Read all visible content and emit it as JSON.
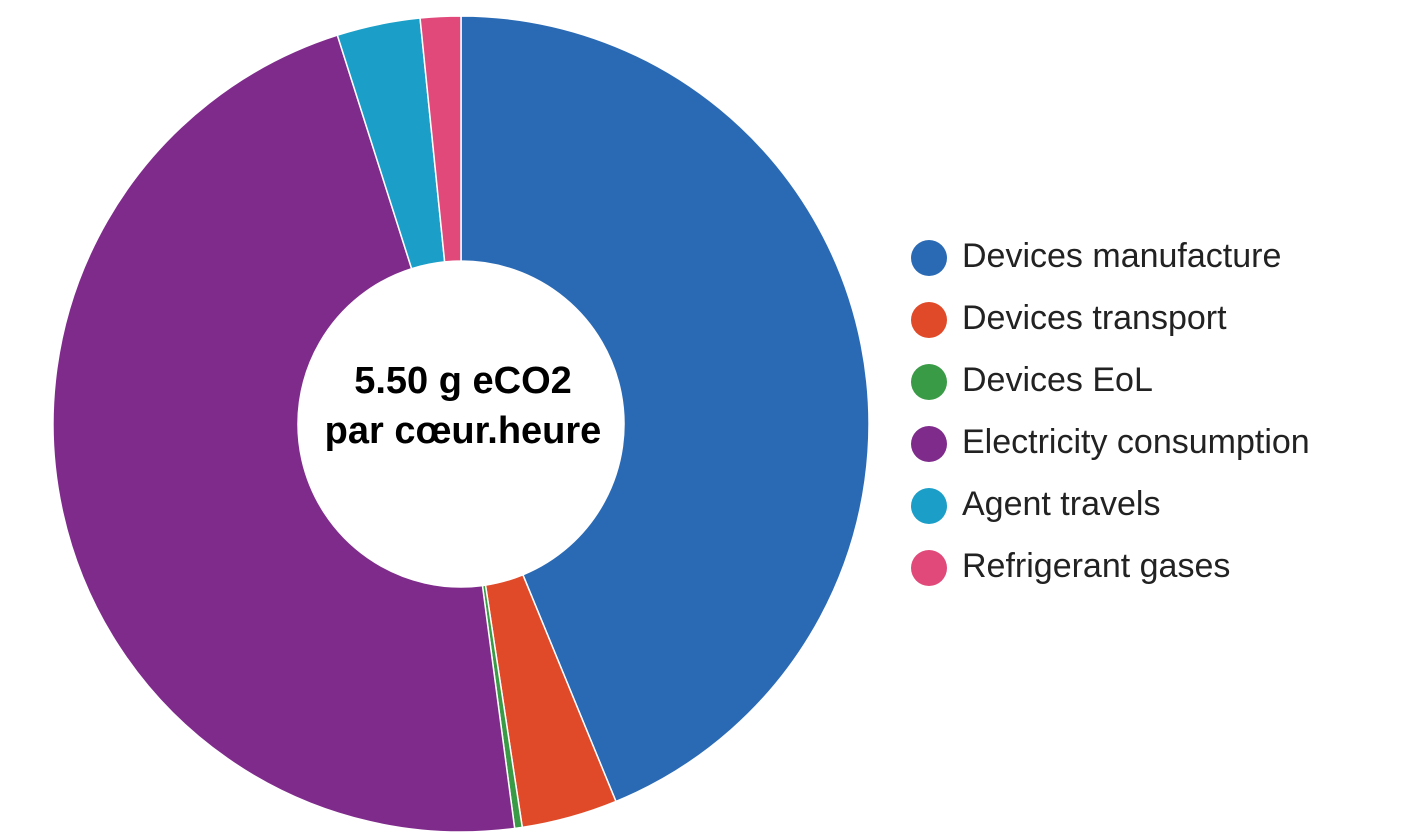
{
  "chart_data": {
    "type": "pie",
    "center_label": [
      "5.50 g eCO2",
      "par cœur.heure"
    ],
    "categories": [
      "Devices manufacture",
      "Devices transport",
      "Devices EoL",
      "Electricity consumption",
      "Agent travels",
      "Refrigerant gases"
    ],
    "values": [
      43.8,
      3.8,
      0.3,
      47.2,
      3.3,
      1.6
    ],
    "colors": [
      "#2a6ab5",
      "#e04a28",
      "#3a9b47",
      "#7f2b8c",
      "#1b9ec7",
      "#e0497a"
    ],
    "legend": "right"
  }
}
